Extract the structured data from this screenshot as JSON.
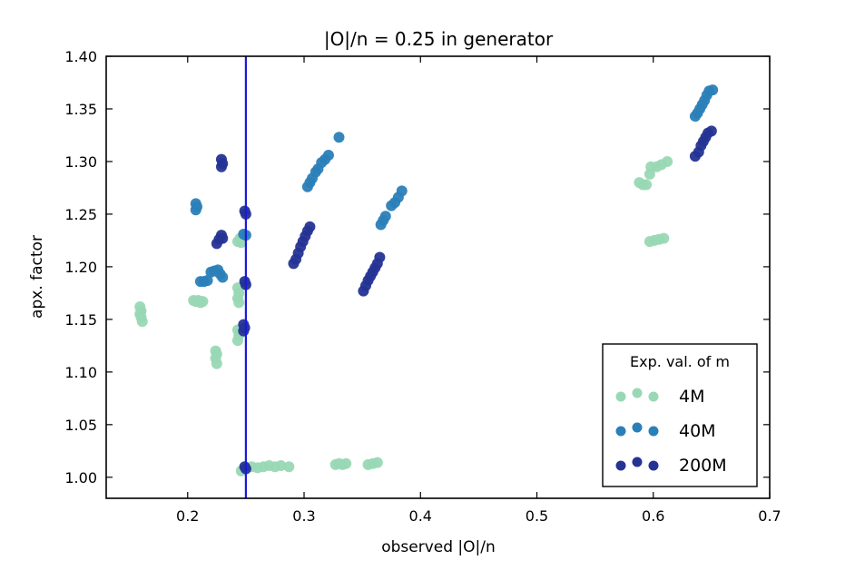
{
  "chart_data": {
    "type": "scatter",
    "title": "|O|/n = 0.25 in generator",
    "xlabel": "observed |O|/n",
    "ylabel": "apx. factor",
    "xlim": [
      0.13,
      0.7
    ],
    "ylim": [
      0.98,
      1.4
    ],
    "xticks": [
      0.2,
      0.3,
      0.4,
      0.5,
      0.6,
      0.7
    ],
    "xtick_labels": [
      "0.2",
      "0.3",
      "0.4",
      "0.5",
      "0.6",
      "0.7"
    ],
    "yticks": [
      1.0,
      1.05,
      1.1,
      1.15,
      1.2,
      1.25,
      1.3,
      1.35,
      1.4
    ],
    "ytick_labels": [
      "1.00",
      "1.05",
      "1.10",
      "1.15",
      "1.20",
      "1.25",
      "1.30",
      "1.35",
      "1.40"
    ],
    "vline": {
      "x": 0.25,
      "color": "#1a1adc"
    },
    "legend": {
      "title": "Exp. val. of m",
      "position": "bottom-right"
    },
    "series": [
      {
        "name": "4M",
        "color": "#99d8b4",
        "points": [
          [
            0.159,
            1.162
          ],
          [
            0.16,
            1.158
          ],
          [
            0.159,
            1.155
          ],
          [
            0.16,
            1.152
          ],
          [
            0.161,
            1.148
          ],
          [
            0.205,
            1.168
          ],
          [
            0.207,
            1.167
          ],
          [
            0.209,
            1.168
          ],
          [
            0.211,
            1.166
          ],
          [
            0.213,
            1.167
          ],
          [
            0.224,
            1.12
          ],
          [
            0.225,
            1.117
          ],
          [
            0.224,
            1.113
          ],
          [
            0.225,
            1.108
          ],
          [
            0.243,
            1.224
          ],
          [
            0.245,
            1.227
          ],
          [
            0.246,
            1.223
          ],
          [
            0.243,
            1.18
          ],
          [
            0.244,
            1.175
          ],
          [
            0.243,
            1.17
          ],
          [
            0.244,
            1.166
          ],
          [
            0.243,
            1.14
          ],
          [
            0.244,
            1.135
          ],
          [
            0.243,
            1.13
          ],
          [
            0.246,
            1.006
          ],
          [
            0.255,
            1.01
          ],
          [
            0.26,
            1.009
          ],
          [
            0.265,
            1.01
          ],
          [
            0.27,
            1.011
          ],
          [
            0.275,
            1.01
          ],
          [
            0.28,
            1.011
          ],
          [
            0.287,
            1.01
          ],
          [
            0.327,
            1.012
          ],
          [
            0.33,
            1.013
          ],
          [
            0.333,
            1.012
          ],
          [
            0.336,
            1.013
          ],
          [
            0.355,
            1.012
          ],
          [
            0.359,
            1.013
          ],
          [
            0.363,
            1.014
          ],
          [
            0.588,
            1.28
          ],
          [
            0.591,
            1.278
          ],
          [
            0.594,
            1.278
          ],
          [
            0.597,
            1.288
          ],
          [
            0.598,
            1.295
          ],
          [
            0.603,
            1.295
          ],
          [
            0.607,
            1.297
          ],
          [
            0.612,
            1.3
          ],
          [
            0.597,
            1.224
          ],
          [
            0.601,
            1.225
          ],
          [
            0.605,
            1.226
          ],
          [
            0.609,
            1.227
          ]
        ]
      },
      {
        "name": "40M",
        "color": "#2b7fb8",
        "points": [
          [
            0.207,
            1.26
          ],
          [
            0.208,
            1.257
          ],
          [
            0.207,
            1.254
          ],
          [
            0.211,
            1.186
          ],
          [
            0.214,
            1.186
          ],
          [
            0.217,
            1.187
          ],
          [
            0.22,
            1.195
          ],
          [
            0.223,
            1.196
          ],
          [
            0.226,
            1.197
          ],
          [
            0.228,
            1.193
          ],
          [
            0.23,
            1.19
          ],
          [
            0.248,
            1.231
          ],
          [
            0.25,
            1.23
          ],
          [
            0.303,
            1.276
          ],
          [
            0.305,
            1.28
          ],
          [
            0.307,
            1.284
          ],
          [
            0.31,
            1.29
          ],
          [
            0.312,
            1.293
          ],
          [
            0.315,
            1.299
          ],
          [
            0.318,
            1.302
          ],
          [
            0.321,
            1.306
          ],
          [
            0.33,
            1.323
          ],
          [
            0.366,
            1.24
          ],
          [
            0.368,
            1.244
          ],
          [
            0.37,
            1.248
          ],
          [
            0.375,
            1.258
          ],
          [
            0.378,
            1.261
          ],
          [
            0.381,
            1.266
          ],
          [
            0.384,
            1.272
          ],
          [
            0.636,
            1.343
          ],
          [
            0.638,
            1.346
          ],
          [
            0.64,
            1.35
          ],
          [
            0.642,
            1.354
          ],
          [
            0.644,
            1.358
          ],
          [
            0.646,
            1.363
          ],
          [
            0.648,
            1.367
          ],
          [
            0.651,
            1.368
          ]
        ]
      },
      {
        "name": "200M",
        "color": "#253494",
        "points": [
          [
            0.229,
            1.302
          ],
          [
            0.23,
            1.298
          ],
          [
            0.229,
            1.295
          ],
          [
            0.225,
            1.222
          ],
          [
            0.227,
            1.226
          ],
          [
            0.229,
            1.23
          ],
          [
            0.23,
            1.227
          ],
          [
            0.249,
            1.253
          ],
          [
            0.25,
            1.25
          ],
          [
            0.249,
            1.186
          ],
          [
            0.25,
            1.183
          ],
          [
            0.248,
            1.145
          ],
          [
            0.249,
            1.142
          ],
          [
            0.248,
            1.139
          ],
          [
            0.249,
            1.01
          ],
          [
            0.25,
            1.008
          ],
          [
            0.291,
            1.203
          ],
          [
            0.293,
            1.207
          ],
          [
            0.295,
            1.213
          ],
          [
            0.297,
            1.219
          ],
          [
            0.299,
            1.224
          ],
          [
            0.301,
            1.229
          ],
          [
            0.303,
            1.234
          ],
          [
            0.305,
            1.238
          ],
          [
            0.351,
            1.177
          ],
          [
            0.353,
            1.182
          ],
          [
            0.355,
            1.187
          ],
          [
            0.357,
            1.191
          ],
          [
            0.359,
            1.195
          ],
          [
            0.361,
            1.199
          ],
          [
            0.363,
            1.203
          ],
          [
            0.365,
            1.209
          ],
          [
            0.636,
            1.305
          ],
          [
            0.639,
            1.309
          ],
          [
            0.641,
            1.315
          ],
          [
            0.643,
            1.319
          ],
          [
            0.645,
            1.323
          ],
          [
            0.647,
            1.327
          ],
          [
            0.65,
            1.329
          ]
        ]
      }
    ]
  }
}
